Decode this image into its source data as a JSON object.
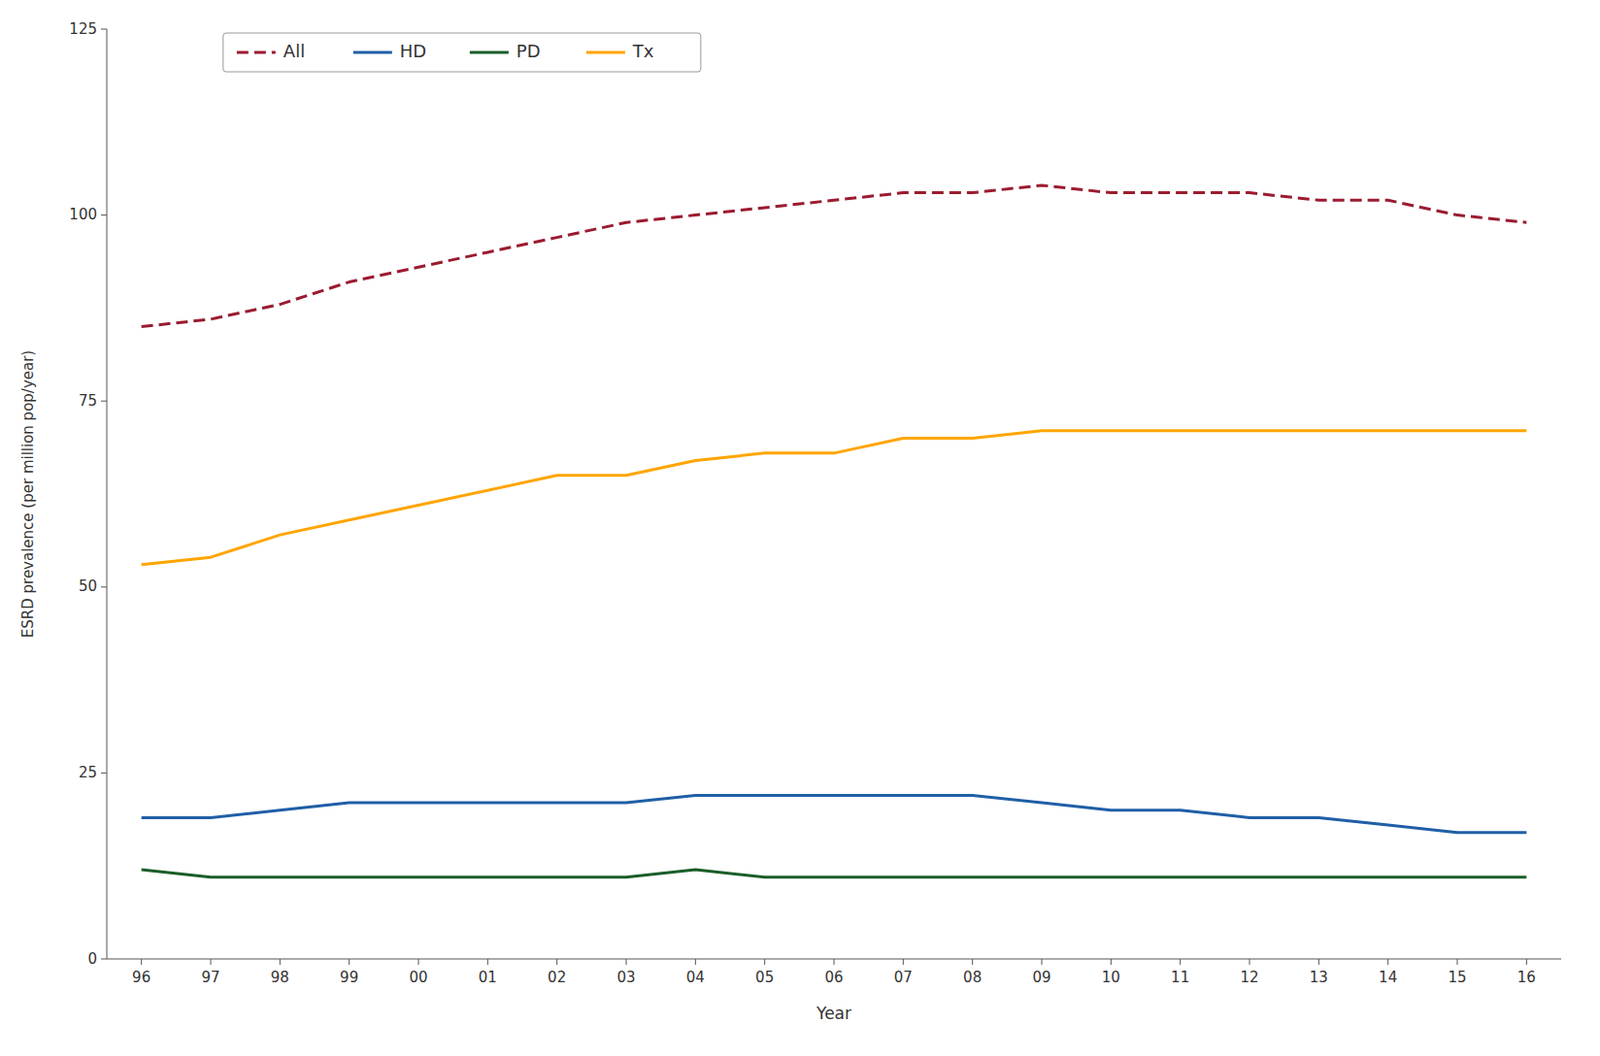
{
  "chart_data": {
    "type": "line",
    "x_label": "Year",
    "y_label": "ESRD prevalence (per million pop/year)",
    "categories": [
      "96",
      "97",
      "98",
      "99",
      "00",
      "01",
      "02",
      "03",
      "04",
      "05",
      "06",
      "07",
      "08",
      "09",
      "10",
      "11",
      "12",
      "13",
      "14",
      "15",
      "16"
    ],
    "series": [
      {
        "name": "All",
        "color": "#9B1B30",
        "line_style": "dashed",
        "values": [
          85,
          86,
          88,
          91,
          93,
          95,
          97,
          99,
          100,
          101,
          102,
          103,
          103,
          104,
          103,
          103,
          103,
          102,
          102,
          100,
          99
        ]
      },
      {
        "name": "HD",
        "color": "#1F5FA6",
        "line_style": "solid",
        "values": [
          19,
          19,
          20,
          21,
          21,
          21,
          21,
          21,
          22,
          22,
          22,
          22,
          22,
          21,
          20,
          20,
          19,
          19,
          18,
          17,
          17
        ]
      },
      {
        "name": "PD",
        "color": "#1A5E2A",
        "line_style": "solid",
        "values": [
          12,
          11,
          11,
          11,
          11,
          11,
          11,
          11,
          12,
          11,
          11,
          11,
          11,
          11,
          11,
          11,
          11,
          11,
          11,
          11,
          11
        ]
      },
      {
        "name": "Tx",
        "color": "#FFA500",
        "line_style": "solid",
        "values": [
          53,
          54,
          57,
          59,
          61,
          63,
          65,
          65,
          67,
          68,
          68,
          70,
          70,
          71,
          71,
          71,
          71,
          71,
          71,
          71,
          71
        ]
      }
    ],
    "ylim": [
      0,
      125
    ],
    "yticks": [
      0,
      25,
      50,
      75,
      100,
      125
    ],
    "grid": false,
    "legend": "upper left"
  }
}
